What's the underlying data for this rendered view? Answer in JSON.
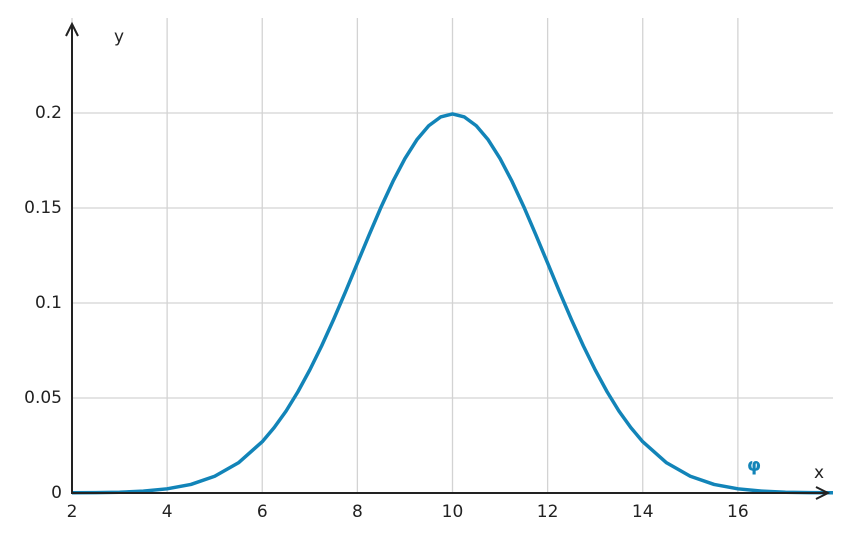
{
  "chart_data": {
    "type": "line",
    "x_label": "x",
    "y_label": "y",
    "xlim": [
      2,
      18
    ],
    "ylim": [
      0,
      0.25
    ],
    "xticks": [
      2,
      4,
      6,
      8,
      10,
      12,
      14,
      16
    ],
    "yticks": [
      0,
      0.05,
      0.1,
      0.15,
      0.2
    ],
    "grid": true,
    "x": [
      2,
      2.5,
      3,
      3.5,
      4,
      4.5,
      5,
      5.5,
      6,
      6.25,
      6.5,
      6.75,
      7,
      7.25,
      7.5,
      7.75,
      8,
      8.25,
      8.5,
      8.75,
      9,
      9.25,
      9.5,
      9.75,
      10,
      10.25,
      10.5,
      10.75,
      11,
      11.25,
      11.5,
      11.75,
      12,
      12.25,
      12.5,
      12.75,
      13,
      13.25,
      13.5,
      13.75,
      14,
      14.5,
      15,
      15.5,
      16,
      16.5,
      17,
      17.5,
      18
    ],
    "series": [
      {
        "name": "φ",
        "color": "#1284b8",
        "values": [
          0.0001,
          0.0002,
          0.0004,
          0.001,
          0.0022,
          0.0045,
          0.0088,
          0.0159,
          0.027,
          0.0344,
          0.0431,
          0.0533,
          0.0648,
          0.0775,
          0.0913,
          0.1059,
          0.121,
          0.136,
          0.1506,
          0.1641,
          0.176,
          0.1859,
          0.1933,
          0.1979,
          0.1995,
          0.1979,
          0.1933,
          0.1859,
          0.176,
          0.1641,
          0.1506,
          0.136,
          0.121,
          0.1059,
          0.0913,
          0.0775,
          0.0648,
          0.0533,
          0.0431,
          0.0344,
          0.027,
          0.0159,
          0.0088,
          0.0045,
          0.0022,
          0.001,
          0.0004,
          0.0002,
          0.0001
        ]
      }
    ]
  }
}
